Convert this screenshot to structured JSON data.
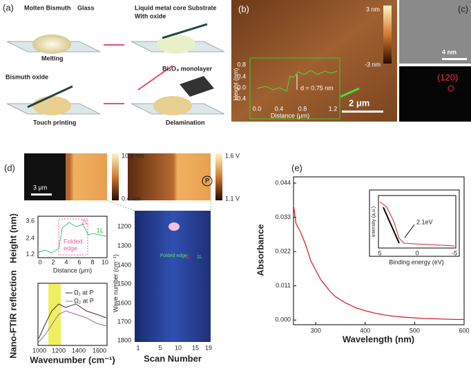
{
  "figure": {
    "a": {
      "label": "(a)",
      "molten": "Molten Bismuth",
      "glass": "Glass",
      "core1": "Liquid metal core",
      "core2": "With oxide",
      "substrate": "Substrate",
      "melting": "Melting",
      "oxide": "Bismuth oxide",
      "monolayer": "Bi₂O₃ monolayer",
      "touch": "Touch printing",
      "delam": "Delamination"
    },
    "b": {
      "label": "(b)",
      "cmax": "3 nm",
      "cmin": "-3 nm",
      "scale": "2 μm",
      "ylabel": "Height (nm)",
      "xlabel": "Distance (μm)",
      "yticks": [
        "0.8",
        "0.4",
        "0.0",
        "-0.4"
      ],
      "xticks": [
        "0.0",
        "0.4",
        "0.8",
        "1.2"
      ],
      "annotation": "d = 0.75 nm"
    },
    "c": {
      "label": "(c)",
      "scale": "4 nm",
      "spot": "(120)"
    },
    "d": {
      "label": "(d)",
      "afm_max": "10.9 nm",
      "afm_min": "0.4 nm",
      "afm_scale": "3 μm",
      "kpfm_max": "1.6 V",
      "kpfm_min": "1.1 V",
      "point": "P",
      "height": {
        "ylabel": "Height (nm)",
        "xlabel": "Distance (μm)",
        "yticks": [
          "3.6",
          "2.4",
          "1.2"
        ],
        "xticks": [
          "0",
          "2",
          "4",
          "6",
          "8",
          "10"
        ],
        "l2": "2L",
        "l1": "1L",
        "fold1": "Folded",
        "fold2": "edge"
      },
      "ftir": {
        "ylabel": "Nano-FTIR reflection",
        "xlabel": "Wavenumber (cm⁻¹)",
        "xticks": [
          "1000",
          "1200",
          "1400",
          "1600"
        ],
        "legend": [
          "Ω₁ at P",
          "Ω₂ at P"
        ]
      },
      "map": {
        "ylabel": "Wave number (cm⁻¹)",
        "xlabel": "Scan Number",
        "yticks": [
          "1200",
          "1300",
          "1400",
          "1500",
          "1600",
          "1700",
          "1800"
        ],
        "xticks": [
          "1",
          "5",
          "10",
          "15",
          "19"
        ],
        "fold": "Folded edge",
        "l2": "2L",
        "l1": "1L"
      }
    },
    "e": {
      "label": "(e)",
      "inset": {
        "ylabel": "Intensity (a.u.)",
        "xlabel": "Binding energy (eV)",
        "xticks": [
          "5",
          "0",
          "-5"
        ],
        "annotation": "2.1eV"
      }
    }
  },
  "chart_data": {
    "type": "line",
    "x_label": "Wavelength (nm)",
    "y_label": "Absorbance",
    "x": [
      255,
      260,
      270,
      280,
      290,
      300,
      310,
      320,
      330,
      340,
      350,
      360,
      370,
      380,
      390,
      400,
      420,
      440,
      460,
      480,
      500,
      520,
      540,
      560,
      580,
      600
    ],
    "series": [
      {
        "color": "#e0202a",
        "values": [
          0.037,
          0.031,
          0.028,
          0.024,
          0.019,
          0.016,
          0.013,
          0.011,
          0.009,
          0.0075,
          0.0065,
          0.0055,
          0.0048,
          0.004,
          0.0035,
          0.003,
          0.0022,
          0.0016,
          0.0012,
          0.0009,
          0.0007,
          0.0005,
          0.0004,
          0.0003,
          0.0002,
          0.0002
        ]
      }
    ],
    "xlim": [
      255,
      600
    ],
    "ylim": [
      -0.0015,
      0.046
    ],
    "xticks": [
      300,
      400,
      500,
      600
    ],
    "yticks": [
      {
        "value": 0,
        "label": "0.000"
      },
      0.011,
      0.022,
      0.033,
      0.044
    ]
  }
}
